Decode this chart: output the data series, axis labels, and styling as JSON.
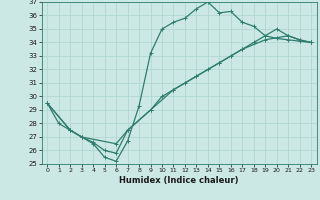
{
  "title": "",
  "xlabel": "Humidex (Indice chaleur)",
  "ylabel": "",
  "bg_color": "#cce8e4",
  "line_color": "#2e7d6e",
  "grid_color": "#b0d8d0",
  "ylim": [
    25,
    37
  ],
  "xlim": [
    -0.5,
    23.5
  ],
  "yticks": [
    25,
    26,
    27,
    28,
    29,
    30,
    31,
    32,
    33,
    34,
    35,
    36,
    37
  ],
  "xticks": [
    0,
    1,
    2,
    3,
    4,
    5,
    6,
    7,
    8,
    9,
    10,
    11,
    12,
    13,
    14,
    15,
    16,
    17,
    18,
    19,
    20,
    21,
    22,
    23
  ],
  "line1_x": [
    0,
    1,
    2,
    3,
    4,
    5,
    6,
    7,
    8,
    9,
    10,
    11,
    12,
    13,
    14,
    15,
    16,
    17,
    18,
    19,
    20,
    21,
    22,
    23
  ],
  "line1_y": [
    29.5,
    28.0,
    27.5,
    27.0,
    26.5,
    25.5,
    25.2,
    26.7,
    29.3,
    33.2,
    35.0,
    35.5,
    35.8,
    36.5,
    37.0,
    36.2,
    36.3,
    35.5,
    35.2,
    34.5,
    34.3,
    34.2,
    34.1,
    34.0
  ],
  "line2_x": [
    0,
    2,
    3,
    4,
    5,
    6,
    7,
    9,
    10,
    11,
    12,
    13,
    14,
    15,
    16,
    17,
    18,
    20,
    21,
    22,
    23
  ],
  "line2_y": [
    29.5,
    27.5,
    27.0,
    26.6,
    26.0,
    25.8,
    27.5,
    29.0,
    30.0,
    30.5,
    31.0,
    31.5,
    32.0,
    32.5,
    33.0,
    33.5,
    34.0,
    35.0,
    34.5,
    34.2,
    34.0
  ],
  "line3_x": [
    0,
    2,
    3,
    6,
    7,
    9,
    11,
    13,
    15,
    17,
    19,
    21,
    22,
    23
  ],
  "line3_y": [
    29.5,
    27.5,
    27.0,
    26.5,
    27.5,
    29.0,
    30.5,
    31.5,
    32.5,
    33.5,
    34.2,
    34.5,
    34.2,
    34.0
  ],
  "marker": "+",
  "marker_size": 3,
  "line_width": 0.9
}
